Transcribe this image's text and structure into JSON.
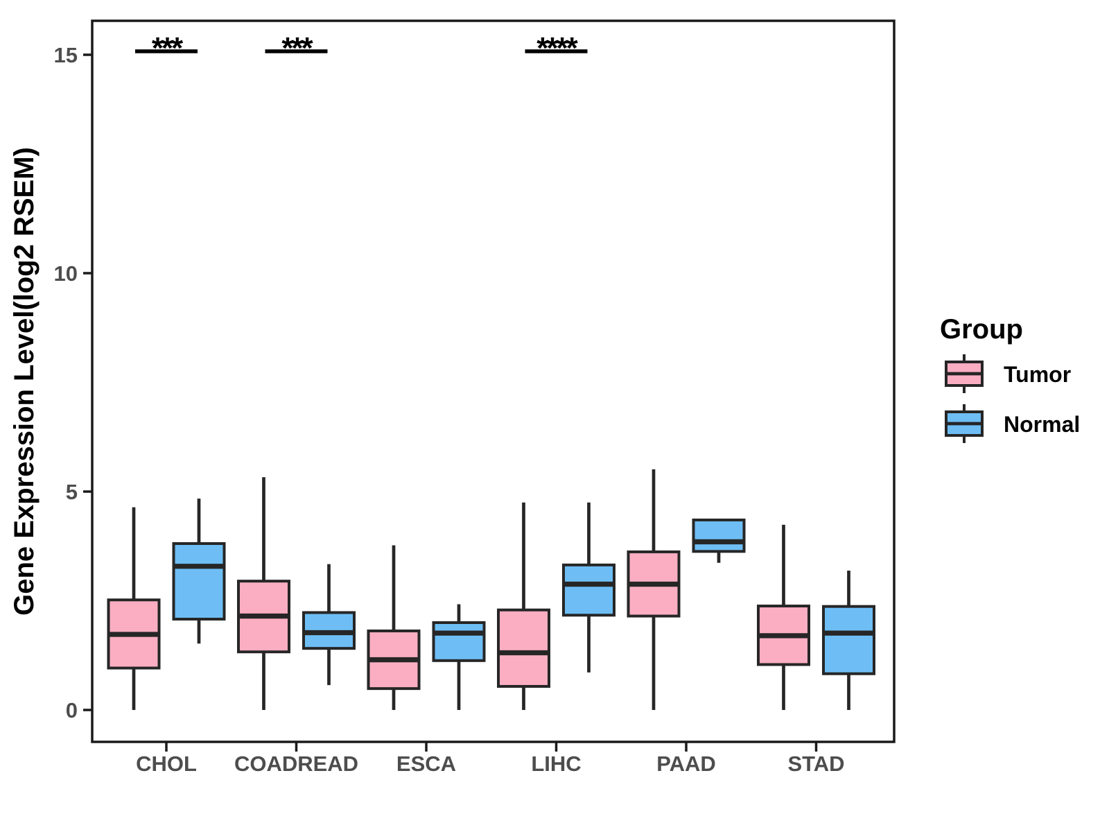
{
  "figure": {
    "legend": {
      "title": "Group",
      "items": [
        {
          "label": "Tumor",
          "color": "#FBAEC2"
        },
        {
          "label": "Normal",
          "color": "#6EBEF5"
        }
      ]
    }
  },
  "style": {
    "tumor_color": "#FBAEC2",
    "normal_color": "#6EBEF5",
    "box_border": "#262626",
    "axis_line_color": "#1A1A1A",
    "axis_text_color": "#4D4D4D",
    "sig_color": "#000000",
    "background": "#FFFFFF"
  },
  "chart_data": {
    "type": "grouped_boxplot",
    "title": "",
    "xlabel": "",
    "ylabel": "Gene Expression Level(log2 RSEM)",
    "categories": [
      "CHOL",
      "COADREAD",
      "ESCA",
      "LIHC",
      "PAAD",
      "STAD"
    ],
    "yticks": [
      0,
      5,
      10,
      15
    ],
    "ylim": [
      -0.7,
      15.8
    ],
    "grid": false,
    "legend_position": "right",
    "series": [
      {
        "name": "Tumor",
        "color": "#FBAEC2",
        "boxes": [
          {
            "category": "CHOL",
            "min": 0,
            "q1": 0.96,
            "median": 1.73,
            "q3": 2.52,
            "max": 4.64
          },
          {
            "category": "COADREAD",
            "min": 0,
            "q1": 1.33,
            "median": 2.15,
            "q3": 2.95,
            "max": 5.33
          },
          {
            "category": "ESCA",
            "min": 0,
            "q1": 0.49,
            "median": 1.15,
            "q3": 1.81,
            "max": 3.77
          },
          {
            "category": "LIHC",
            "min": 0,
            "q1": 0.54,
            "median": 1.31,
            "q3": 2.29,
            "max": 4.75
          },
          {
            "category": "PAAD",
            "min": 0,
            "q1": 2.15,
            "median": 2.88,
            "q3": 3.62,
            "max": 5.51
          },
          {
            "category": "STAD",
            "min": 0,
            "q1": 1.04,
            "median": 1.7,
            "q3": 2.38,
            "max": 4.24
          }
        ]
      },
      {
        "name": "Normal",
        "color": "#6EBEF5",
        "boxes": [
          {
            "category": "CHOL",
            "min": 1.52,
            "q1": 2.08,
            "median": 3.29,
            "q3": 3.81,
            "max": 4.84
          },
          {
            "category": "COADREAD",
            "min": 0.57,
            "q1": 1.41,
            "median": 1.77,
            "q3": 2.23,
            "max": 3.34
          },
          {
            "category": "ESCA",
            "min": 0,
            "q1": 1.13,
            "median": 1.76,
            "q3": 2.0,
            "max": 2.42
          },
          {
            "category": "LIHC",
            "min": 0.86,
            "q1": 2.17,
            "median": 2.88,
            "q3": 3.32,
            "max": 4.75
          },
          {
            "category": "PAAD",
            "min": 3.37,
            "q1": 3.63,
            "median": 3.85,
            "q3": 4.35,
            "max": 4.35
          },
          {
            "category": "STAD",
            "min": 0,
            "q1": 0.83,
            "median": 1.76,
            "q3": 2.37,
            "max": 3.19
          }
        ]
      }
    ],
    "significance": [
      {
        "category": "CHOL",
        "label": "***"
      },
      {
        "category": "COADREAD",
        "label": "***"
      },
      {
        "category": "LIHC",
        "label": "****"
      }
    ]
  }
}
